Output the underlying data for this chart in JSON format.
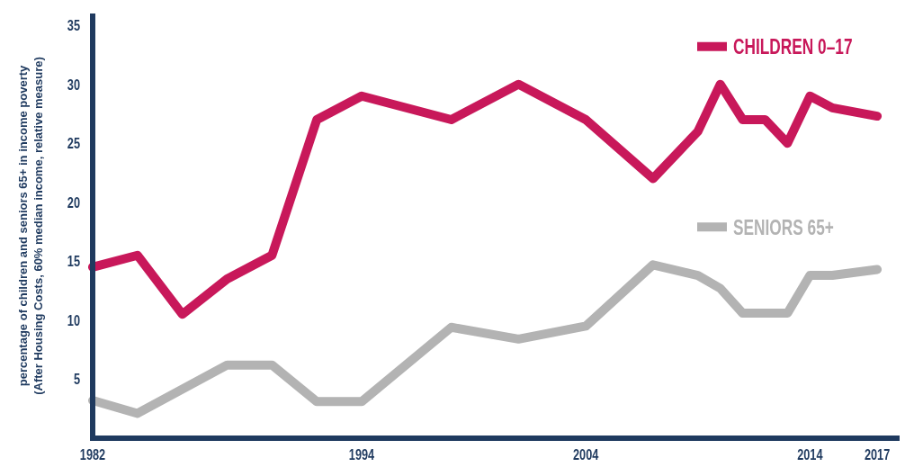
{
  "chart_data": {
    "type": "line",
    "ylabel": "percentage of children and seniors 65+ in income poverty\n(After Housing Costs, 60% median income, relative measure)",
    "xlim": [
      1982,
      2018
    ],
    "xticks": [
      1982,
      1994,
      2004,
      2014,
      2017
    ],
    "ylim": [
      0,
      36
    ],
    "yticks": [
      5,
      10,
      15,
      20,
      25,
      30,
      35
    ],
    "grid": false,
    "legend": "right",
    "marker": "none",
    "line_style": "solid",
    "series": [
      {
        "name": "CHILDREN 0–17",
        "color": "#c8185a",
        "x": [
          1982,
          1984,
          1986,
          1988,
          1990,
          1992,
          1994,
          1998,
          2001,
          2004,
          2007,
          2009,
          2010,
          2011,
          2012,
          2013,
          2014,
          2015,
          2017
        ],
        "values": [
          14.5,
          15.5,
          10.5,
          13.5,
          15.5,
          27,
          29,
          27,
          30,
          27,
          22,
          26,
          30,
          27,
          27,
          25,
          29,
          28,
          27.3
        ]
      },
      {
        "name": "SENIORS 65+",
        "color": "#b3b3b3",
        "x": [
          1982,
          1984,
          1988,
          1990,
          1992,
          1994,
          1998,
          2001,
          2004,
          2007,
          2009,
          2010,
          2011,
          2013,
          2014,
          2015,
          2017
        ],
        "values": [
          3.2,
          2.1,
          6.2,
          6.2,
          3.1,
          3.1,
          9.4,
          8.4,
          9.5,
          14.7,
          13.8,
          12.7,
          10.6,
          10.6,
          13.8,
          13.8,
          14.3
        ]
      }
    ]
  }
}
